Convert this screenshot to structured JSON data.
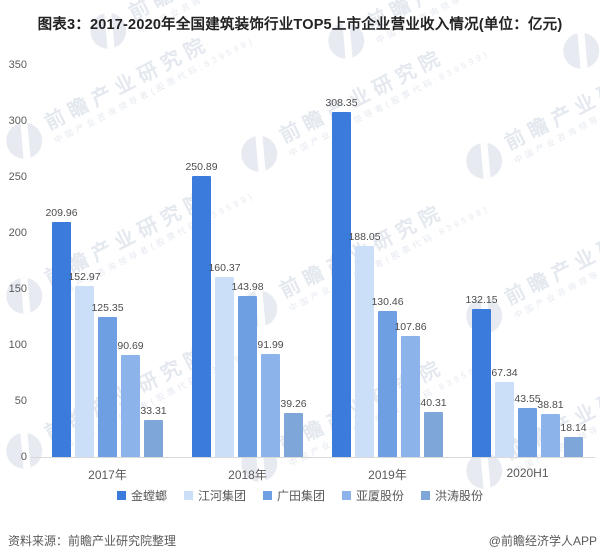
{
  "title": "图表3：2017-2020年全国建筑装饰行业TOP5上市企业营业收入情况(单位：亿元)",
  "chart_data": {
    "type": "bar",
    "categories": [
      "2017年",
      "2018年",
      "2019年",
      "2020H1"
    ],
    "series": [
      {
        "name": "金螳螂",
        "color": "#3b7bdb",
        "values": [
          209.96,
          250.89,
          308.35,
          132.15
        ]
      },
      {
        "name": "江河集团",
        "color": "#cbdff8",
        "values": [
          152.97,
          160.37,
          188.05,
          67.34
        ]
      },
      {
        "name": "广田集团",
        "color": "#6d9fe2",
        "values": [
          125.35,
          143.98,
          130.46,
          43.55
        ]
      },
      {
        "name": "亚厦股份",
        "color": "#8db4ea",
        "values": [
          90.69,
          91.99,
          107.86,
          38.81
        ]
      },
      {
        "name": "洪涛股份",
        "color": "#7ea6d8",
        "values": [
          33.31,
          39.26,
          40.31,
          18.14
        ]
      }
    ],
    "ylim": [
      0,
      350
    ],
    "yticks": [
      0,
      50,
      100,
      150,
      200,
      250,
      300,
      350
    ],
    "grid": false,
    "legend_position": "bottom",
    "xlabel": "",
    "ylabel": "单位：亿元"
  },
  "footer": {
    "source": "资料来源：前瞻产业研究院整理",
    "credit": "@前瞻经济学人APP"
  },
  "watermark": {
    "main": "前瞻产业研究院",
    "sub": "中国产业咨询领导者(股票代码:839599)"
  }
}
